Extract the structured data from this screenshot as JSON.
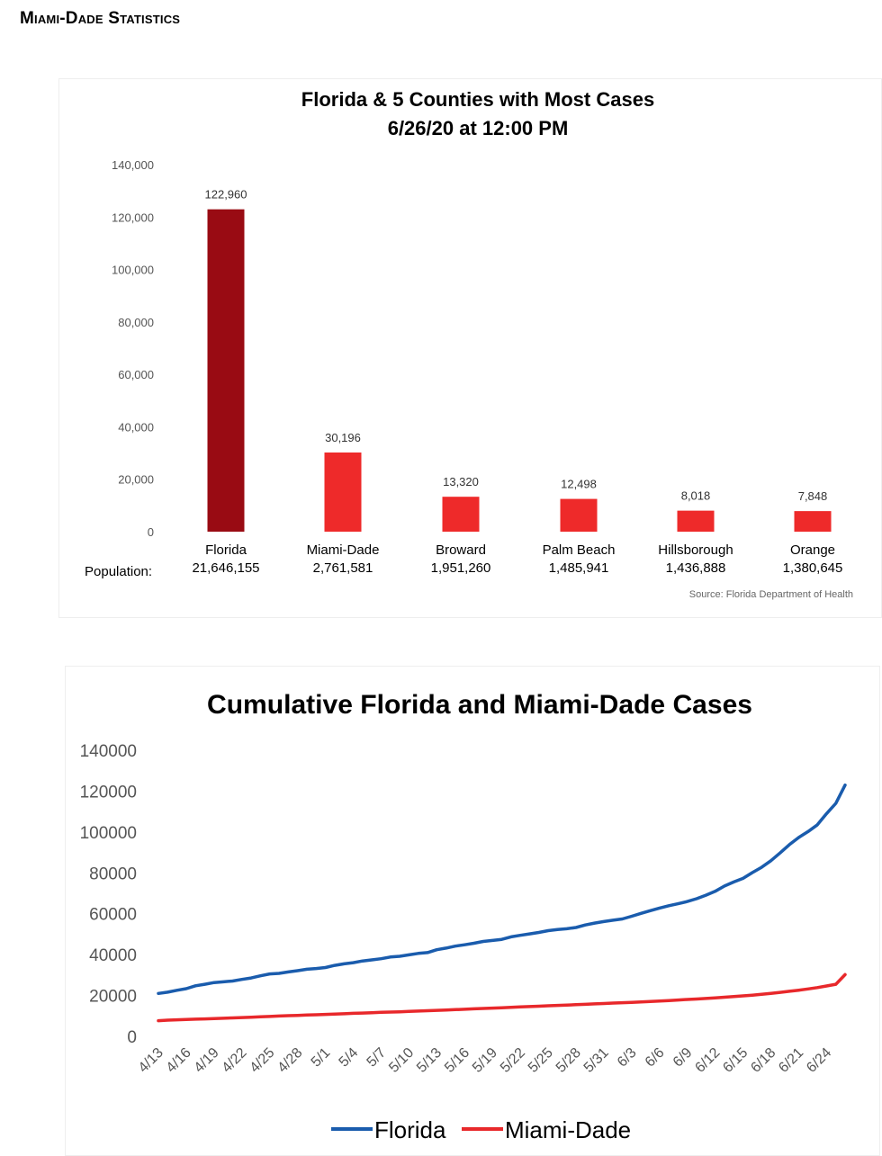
{
  "page": {
    "header": "Miami-Dade Statistics"
  },
  "colors": {
    "florida_bar": "#990b13",
    "county_bar": "#ee2a2a",
    "florida_line": "#1a5cad",
    "miami_line": "#e8282b",
    "axis_text": "#555555"
  },
  "chart_data": [
    {
      "type": "bar",
      "title": "Florida & 5 Counties with Most Cases",
      "subtitle": "6/26/20 at 12:00 PM",
      "categories": [
        "Florida",
        "Miami-Dade",
        "Broward",
        "Palm Beach",
        "Hillsborough",
        "Orange"
      ],
      "values": [
        122960,
        30196,
        13320,
        12498,
        8018,
        7848
      ],
      "value_labels": [
        "122,960",
        "30,196",
        "13,320",
        "12,498",
        "8,018",
        "7,848"
      ],
      "population_label": "Population:",
      "populations": [
        "21,646,155",
        "2,761,581",
        "1,951,260",
        "1,485,941",
        "1,436,888",
        "1,380,645"
      ],
      "yticks": [
        "0",
        "20,000",
        "40,000",
        "60,000",
        "80,000",
        "100,000",
        "120,000",
        "140,000"
      ],
      "ylim": [
        0,
        140000
      ],
      "source": "Source: Florida Department of Health",
      "grid": false
    },
    {
      "type": "line",
      "title": "Cumulative Florida and Miami-Dade Cases",
      "x": [
        "4/13",
        "4/14",
        "4/15",
        "4/16",
        "4/17",
        "4/18",
        "4/19",
        "4/20",
        "4/21",
        "4/22",
        "4/23",
        "4/24",
        "4/25",
        "4/26",
        "4/27",
        "4/28",
        "4/29",
        "4/30",
        "5/1",
        "5/2",
        "5/3",
        "5/4",
        "5/5",
        "5/6",
        "5/7",
        "5/8",
        "5/9",
        "5/10",
        "5/11",
        "5/12",
        "5/13",
        "5/14",
        "5/15",
        "5/16",
        "5/17",
        "5/18",
        "5/19",
        "5/20",
        "5/21",
        "5/22",
        "5/23",
        "5/24",
        "5/25",
        "5/26",
        "5/27",
        "5/28",
        "5/29",
        "5/30",
        "5/31",
        "6/1",
        "6/2",
        "6/3",
        "6/4",
        "6/5",
        "6/6",
        "6/7",
        "6/8",
        "6/9",
        "6/10",
        "6/11",
        "6/12",
        "6/13",
        "6/14",
        "6/15",
        "6/16",
        "6/17",
        "6/18",
        "6/19",
        "6/20",
        "6/21",
        "6/22",
        "6/23",
        "6/24",
        "6/25",
        "6/26"
      ],
      "xtick_labels": [
        "4/13",
        "4/16",
        "4/19",
        "4/22",
        "4/25",
        "4/28",
        "5/1",
        "5/4",
        "5/7",
        "5/10",
        "5/13",
        "5/16",
        "5/19",
        "5/22",
        "5/25",
        "5/28",
        "5/31",
        "6/3",
        "6/6",
        "6/9",
        "6/12",
        "6/15",
        "6/18",
        "6/21",
        "6/24"
      ],
      "series": [
        {
          "name": "Florida",
          "values": [
            21019,
            21628,
            22519,
            23340,
            24753,
            25492,
            26314,
            26660,
            27058,
            27869,
            28576,
            29648,
            30533,
            30839,
            31528,
            32138,
            32846,
            33193,
            33690,
            34728,
            35463,
            36078,
            36897,
            37439,
            38002,
            38828,
            39199,
            39890,
            40596,
            40982,
            42402,
            43210,
            44138,
            44811,
            45588,
            46442,
            46944,
            47471,
            48675,
            49451,
            50127,
            50867,
            51746,
            52255,
            52634,
            53285,
            54497,
            55424,
            56163,
            56830,
            57447,
            58764,
            60183,
            61488,
            62758,
            63938,
            64904,
            66000,
            67371,
            69069,
            70971,
            73552,
            75568,
            77326,
            80109,
            82719,
            85926,
            89748,
            93797,
            97291,
            100217,
            103503,
            109014,
            114018,
            122960
          ]
        },
        {
          "name": "Miami-Dade",
          "values": [
            7655,
            7946,
            8095,
            8248,
            8405,
            8559,
            8708,
            8868,
            9040,
            9216,
            9391,
            9574,
            9748,
            9951,
            10111,
            10256,
            10427,
            10566,
            10746,
            10921,
            11070,
            11249,
            11402,
            11579,
            11741,
            11887,
            12039,
            12193,
            12378,
            12549,
            12727,
            12891,
            13086,
            13269,
            13457,
            13633,
            13840,
            14018,
            14215,
            14412,
            14588,
            14767,
            14954,
            15149,
            15328,
            15518,
            15689,
            15887,
            16071,
            16269,
            16461,
            16651,
            16863,
            17073,
            17313,
            17543,
            17787,
            18058,
            18290,
            18550,
            18826,
            19144,
            19466,
            19811,
            20182,
            20588,
            21039,
            21529,
            22050,
            22586,
            23180,
            23864,
            24646,
            25502,
            30196
          ]
        }
      ],
      "yticks": [
        "0",
        "20000",
        "40000",
        "60000",
        "80000",
        "100000",
        "120000",
        "140000"
      ],
      "ylim": [
        0,
        140000
      ],
      "legend": "bottom"
    }
  ]
}
